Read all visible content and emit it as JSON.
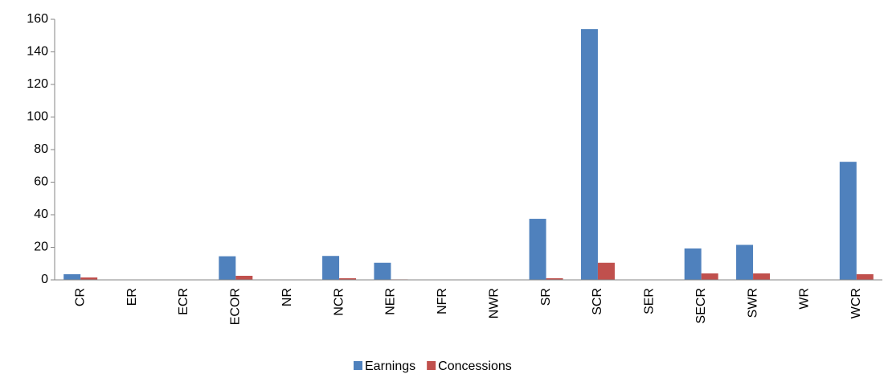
{
  "chart_data": {
    "type": "bar",
    "categories": [
      "CR",
      "ER",
      "ECR",
      "ECOR",
      "NR",
      "NCR",
      "NER",
      "NFR",
      "NWR",
      "SR",
      "SCR",
      "SER",
      "SECR",
      "SWR",
      "WR",
      "WCR"
    ],
    "series": [
      {
        "name": "Earnings",
        "color": "#4f81bd",
        "values": [
          3.5,
          0.2,
          0,
          14.5,
          0,
          14.7,
          10.5,
          0,
          0,
          37.5,
          154,
          0,
          19.3,
          21.5,
          0,
          72.5
        ]
      },
      {
        "name": "Concessions",
        "color": "#c0504d",
        "values": [
          1.5,
          0,
          0,
          2.5,
          0,
          1,
          0.3,
          0,
          0,
          1,
          10.5,
          0,
          4,
          4,
          0,
          3.5
        ]
      }
    ],
    "ylim": [
      0,
      160
    ],
    "yticks": [
      0,
      20,
      40,
      60,
      80,
      100,
      120,
      140,
      160
    ],
    "grid": false,
    "legend": "bottom"
  }
}
